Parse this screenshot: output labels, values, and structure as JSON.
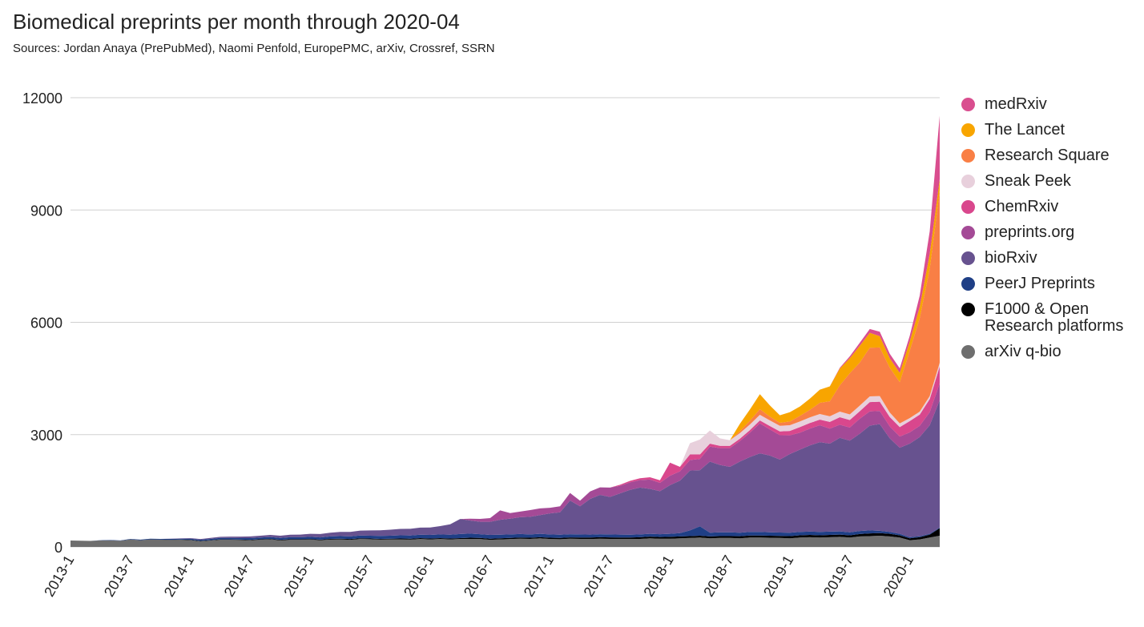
{
  "chart_data": {
    "type": "stacked-area",
    "title": "Biomedical preprints per month through 2020-04",
    "subtitle": "Sources: Jordan Anaya (PrePubMed), Naomi Penfold, EuropePMC, arXiv, Crossref, SSRN",
    "categories": [
      "2013-1",
      null,
      null,
      null,
      null,
      null,
      "2013-7",
      null,
      null,
      null,
      null,
      null,
      "2014-1",
      null,
      null,
      null,
      null,
      null,
      "2014-7",
      null,
      null,
      null,
      null,
      null,
      "2015-1",
      null,
      null,
      null,
      null,
      null,
      "2015-7",
      null,
      null,
      null,
      null,
      null,
      "2016-1",
      null,
      null,
      null,
      null,
      null,
      "2016-7",
      null,
      null,
      null,
      null,
      null,
      "2017-1",
      null,
      null,
      null,
      null,
      null,
      "2017-7",
      null,
      null,
      null,
      null,
      null,
      "2018-1",
      null,
      null,
      null,
      null,
      null,
      "2018-7",
      null,
      null,
      null,
      null,
      null,
      "2019-1",
      null,
      null,
      null,
      null,
      null,
      "2019-7",
      null,
      null,
      null,
      null,
      null,
      "2020-1",
      null,
      null,
      null
    ],
    "ylim": [
      0,
      12000
    ],
    "yticks": [
      0,
      3000,
      6000,
      9000,
      12000
    ],
    "grid": true,
    "series": [
      {
        "name": "arXiv q-bio",
        "color": "#6e6e6e",
        "values": [
          170,
          165,
          160,
          175,
          175,
          165,
          200,
          180,
          195,
          190,
          185,
          190,
          180,
          150,
          170,
          190,
          190,
          185,
          180,
          190,
          200,
          175,
          190,
          190,
          195,
          180,
          195,
          200,
          190,
          210,
          205,
          195,
          200,
          200,
          195,
          210,
          200,
          210,
          200,
          210,
          215,
          210,
          190,
          200,
          210,
          220,
          215,
          230,
          210,
          205,
          220,
          215,
          210,
          220,
          215,
          210,
          210,
          215,
          230,
          220,
          220,
          230,
          240,
          250,
          230,
          240,
          240,
          230,
          250,
          250,
          245,
          240,
          230,
          250,
          260,
          250,
          260,
          270,
          250,
          280,
          290,
          300,
          280,
          250,
          180,
          200,
          250,
          300
        ]
      },
      {
        "name": "F1000 & Open Research platforms",
        "color": "#000000",
        "values": [
          0,
          0,
          0,
          0,
          0,
          0,
          0,
          0,
          5,
          5,
          5,
          5,
          10,
          10,
          10,
          10,
          10,
          10,
          10,
          15,
          15,
          15,
          15,
          15,
          15,
          15,
          20,
          20,
          20,
          20,
          20,
          20,
          20,
          25,
          25,
          25,
          25,
          25,
          25,
          25,
          30,
          30,
          30,
          30,
          30,
          30,
          30,
          30,
          35,
          35,
          35,
          35,
          40,
          40,
          40,
          40,
          40,
          45,
          45,
          45,
          50,
          50,
          50,
          50,
          50,
          50,
          50,
          55,
          55,
          55,
          55,
          55,
          60,
          60,
          60,
          60,
          60,
          60,
          60,
          65,
          70,
          70,
          70,
          60,
          50,
          60,
          80,
          200
        ]
      },
      {
        "name": "PeerJ Preprints",
        "color": "#1f3f86",
        "values": [
          0,
          0,
          0,
          5,
          10,
          10,
          15,
          15,
          20,
          20,
          25,
          25,
          30,
          30,
          35,
          40,
          40,
          40,
          45,
          45,
          50,
          50,
          55,
          55,
          60,
          60,
          65,
          70,
          70,
          75,
          75,
          80,
          80,
          85,
          85,
          90,
          95,
          100,
          100,
          110,
          110,
          100,
          100,
          95,
          95,
          95,
          90,
          90,
          90,
          85,
          85,
          85,
          80,
          80,
          80,
          80,
          75,
          75,
          75,
          75,
          80,
          90,
          150,
          250,
          100,
          100,
          100,
          95,
          95,
          95,
          90,
          90,
          90,
          90,
          90,
          90,
          90,
          85,
          80,
          80,
          80,
          60,
          50,
          40,
          30,
          25,
          20,
          20
        ]
      },
      {
        "name": "bioRxiv",
        "color": "#67528f",
        "values": [
          0,
          0,
          0,
          0,
          0,
          0,
          0,
          0,
          0,
          0,
          5,
          10,
          15,
          20,
          25,
          30,
          35,
          40,
          45,
          50,
          55,
          60,
          65,
          70,
          80,
          90,
          100,
          110,
          120,
          130,
          140,
          150,
          160,
          170,
          180,
          190,
          200,
          220,
          280,
          400,
          350,
          330,
          350,
          400,
          420,
          450,
          470,
          500,
          560,
          600,
          900,
          750,
          950,
          1050,
          1000,
          1100,
          1200,
          1250,
          1200,
          1150,
          1300,
          1400,
          1600,
          1500,
          1900,
          1800,
          1750,
          1900,
          2000,
          2100,
          2050,
          1950,
          2100,
          2200,
          2300,
          2400,
          2350,
          2500,
          2450,
          2600,
          2800,
          2850,
          2500,
          2300,
          2500,
          2650,
          2900,
          3400
        ]
      },
      {
        "name": "preprints.org",
        "color": "#a44a96",
        "values": [
          0,
          0,
          0,
          0,
          0,
          0,
          0,
          0,
          0,
          0,
          0,
          0,
          0,
          0,
          0,
          0,
          0,
          0,
          0,
          0,
          0,
          0,
          0,
          0,
          0,
          0,
          0,
          0,
          0,
          0,
          0,
          0,
          0,
          0,
          0,
          0,
          0,
          0,
          0,
          0,
          50,
          80,
          100,
          250,
          150,
          150,
          180,
          180,
          150,
          160,
          200,
          150,
          200,
          200,
          250,
          200,
          200,
          200,
          250,
          220,
          250,
          250,
          280,
          300,
          400,
          450,
          500,
          550,
          650,
          800,
          700,
          650,
          500,
          450,
          450,
          450,
          400,
          350,
          350,
          400,
          380,
          350,
          320,
          300,
          300,
          300,
          350,
          450
        ]
      },
      {
        "name": "ChemRxiv",
        "color": "#d9478d",
        "values": [
          0,
          0,
          0,
          0,
          0,
          0,
          0,
          0,
          0,
          0,
          0,
          0,
          0,
          0,
          0,
          0,
          0,
          0,
          0,
          0,
          0,
          0,
          0,
          0,
          0,
          0,
          0,
          0,
          0,
          0,
          0,
          0,
          0,
          0,
          0,
          0,
          0,
          0,
          0,
          0,
          0,
          0,
          0,
          0,
          0,
          0,
          0,
          0,
          0,
          0,
          0,
          0,
          0,
          0,
          0,
          30,
          40,
          50,
          60,
          70,
          350,
          120,
          150,
          120,
          80,
          60,
          60,
          60,
          70,
          80,
          90,
          100,
          120,
          150,
          150,
          150,
          180,
          200,
          200,
          200,
          250,
          250,
          250,
          250,
          300,
          300,
          350,
          450
        ]
      },
      {
        "name": "Sneak Peek",
        "color": "#e8d0dc",
        "values": [
          0,
          0,
          0,
          0,
          0,
          0,
          0,
          0,
          0,
          0,
          0,
          0,
          0,
          0,
          0,
          0,
          0,
          0,
          0,
          0,
          0,
          0,
          0,
          0,
          0,
          0,
          0,
          0,
          0,
          0,
          0,
          0,
          0,
          0,
          0,
          0,
          0,
          0,
          0,
          0,
          0,
          0,
          0,
          0,
          0,
          0,
          0,
          0,
          0,
          0,
          0,
          0,
          0,
          0,
          0,
          0,
          0,
          0,
          0,
          0,
          0,
          0,
          300,
          400,
          350,
          200,
          150,
          150,
          150,
          150,
          150,
          150,
          150,
          150,
          150,
          150,
          150,
          150,
          150,
          150,
          150,
          150,
          120,
          100,
          80,
          80,
          80,
          100
        ]
      },
      {
        "name": "Research Square",
        "color": "#f97f45",
        "values": [
          0,
          0,
          0,
          0,
          0,
          0,
          0,
          0,
          0,
          0,
          0,
          0,
          0,
          0,
          0,
          0,
          0,
          0,
          0,
          0,
          0,
          0,
          0,
          0,
          0,
          0,
          0,
          0,
          0,
          0,
          0,
          0,
          0,
          0,
          0,
          0,
          0,
          0,
          0,
          0,
          0,
          0,
          0,
          0,
          0,
          0,
          0,
          0,
          0,
          0,
          0,
          0,
          0,
          0,
          0,
          0,
          0,
          0,
          0,
          0,
          0,
          0,
          0,
          0,
          0,
          0,
          0,
          50,
          100,
          150,
          100,
          80,
          100,
          150,
          200,
          300,
          400,
          700,
          1100,
          1150,
          1300,
          1300,
          1200,
          1100,
          1800,
          2500,
          3400,
          4600
        ]
      },
      {
        "name": "The Lancet",
        "color": "#f8a500",
        "values": [
          0,
          0,
          0,
          0,
          0,
          0,
          0,
          0,
          0,
          0,
          0,
          0,
          0,
          0,
          0,
          0,
          0,
          0,
          0,
          0,
          0,
          0,
          0,
          0,
          0,
          0,
          0,
          0,
          0,
          0,
          0,
          0,
          0,
          0,
          0,
          0,
          0,
          0,
          0,
          0,
          0,
          0,
          0,
          0,
          0,
          0,
          0,
          0,
          0,
          0,
          0,
          0,
          0,
          0,
          0,
          0,
          0,
          0,
          0,
          0,
          0,
          0,
          0,
          0,
          0,
          0,
          0,
          200,
          300,
          400,
          300,
          200,
          250,
          250,
          300,
          350,
          400,
          450,
          400,
          450,
          400,
          300,
          250,
          250,
          250,
          300,
          400,
          300
        ]
      },
      {
        "name": "medRxiv",
        "color": "#d94e8f",
        "values": [
          0,
          0,
          0,
          0,
          0,
          0,
          0,
          0,
          0,
          0,
          0,
          0,
          0,
          0,
          0,
          0,
          0,
          0,
          0,
          0,
          0,
          0,
          0,
          0,
          0,
          0,
          0,
          0,
          0,
          0,
          0,
          0,
          0,
          0,
          0,
          0,
          0,
          0,
          0,
          0,
          0,
          0,
          0,
          0,
          0,
          0,
          0,
          0,
          0,
          0,
          0,
          0,
          0,
          0,
          0,
          0,
          0,
          0,
          0,
          0,
          0,
          0,
          0,
          0,
          0,
          0,
          0,
          0,
          0,
          0,
          0,
          0,
          0,
          0,
          0,
          0,
          0,
          20,
          50,
          80,
          100,
          120,
          120,
          120,
          150,
          300,
          600,
          1700
        ]
      }
    ]
  }
}
